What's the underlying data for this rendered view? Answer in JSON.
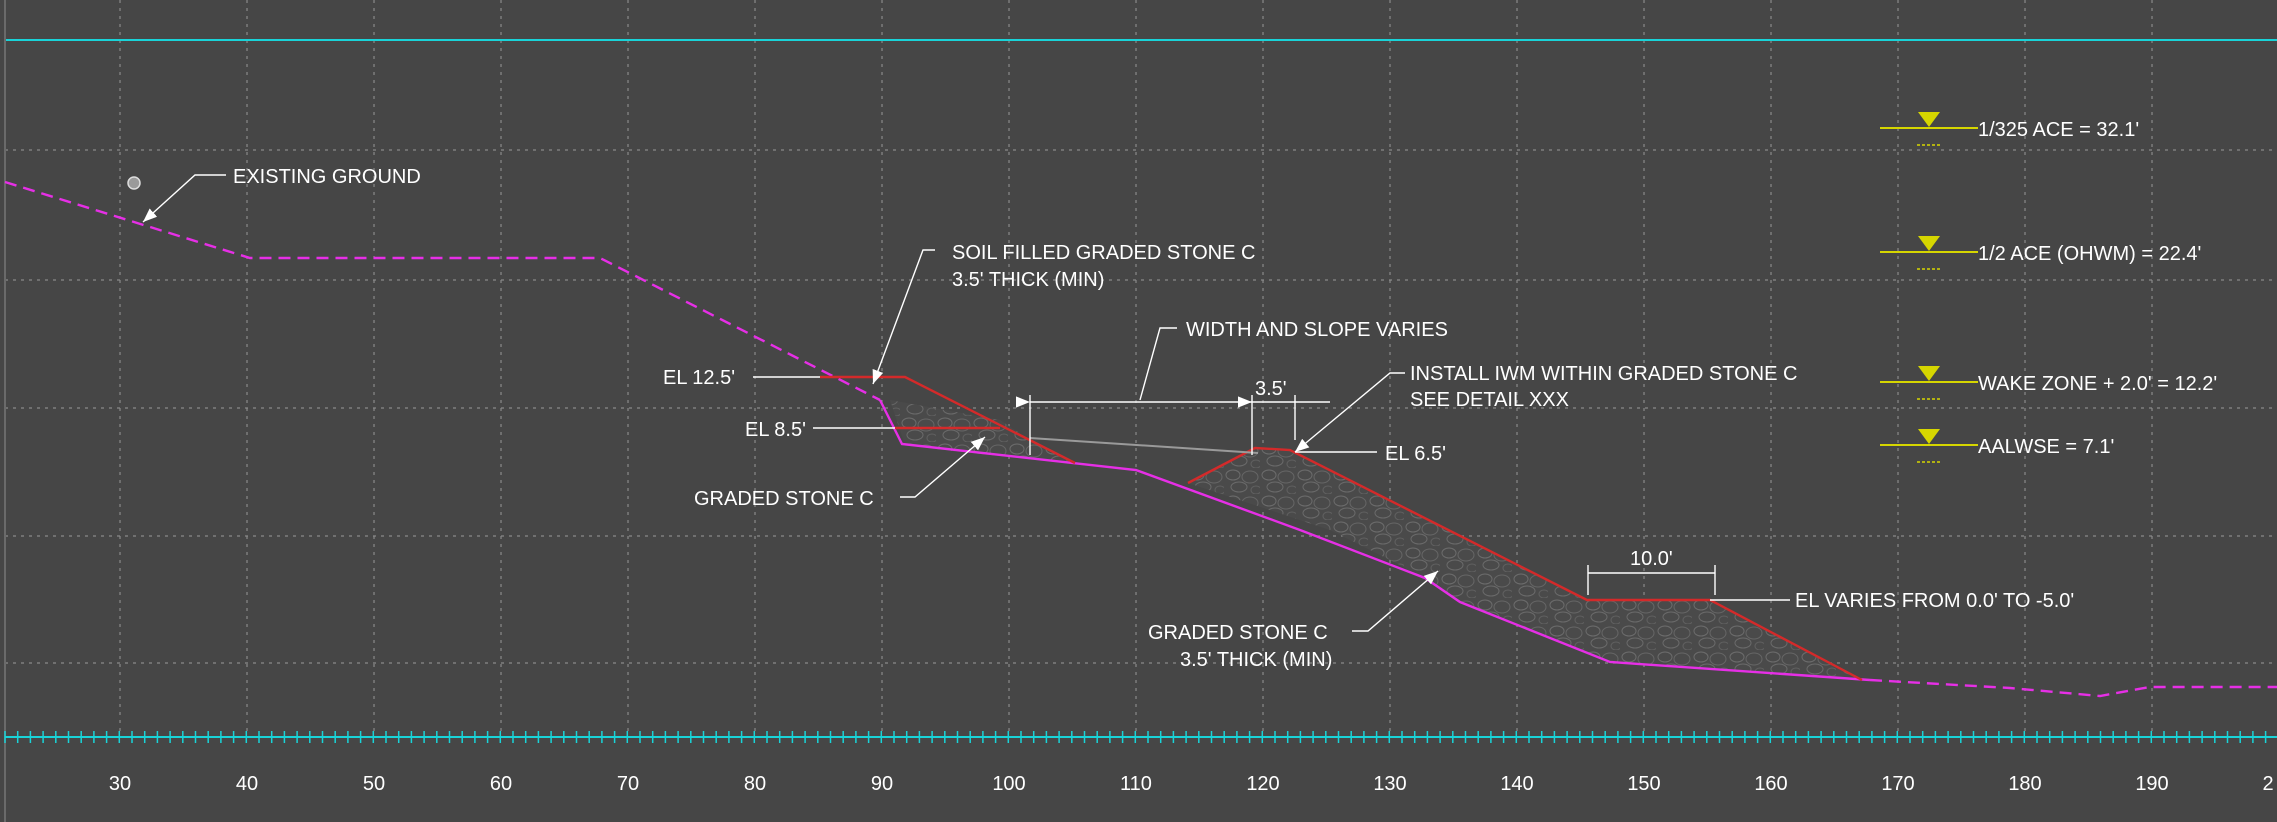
{
  "colors": {
    "background": "#464646",
    "frame": "#19d3d8",
    "existing_ground": "#e62fe6",
    "proposed": "#d42a2a",
    "water_marker": "#d6d600",
    "text": "#ffffff"
  },
  "x_axis": {
    "ticks": [
      "30",
      "40",
      "50",
      "60",
      "70",
      "80",
      "90",
      "100",
      "110",
      "120",
      "130",
      "140",
      "150",
      "160",
      "170",
      "180",
      "190",
      "2"
    ]
  },
  "labels": {
    "existing_ground": "EXISTING GROUND",
    "soil_filled_line1": "SOIL FILLED GRADED STONE C",
    "soil_filled_line2": "3.5' THICK (MIN)",
    "width_slope": "WIDTH AND SLOPE VARIES",
    "dim_3_5": "3.5'",
    "install_iwm_line1": "INSTALL IWM WITHIN GRADED STONE C",
    "install_iwm_line2": "SEE DETAIL XXX",
    "el_12_5": "EL 12.5'",
    "el_8_5": "EL 8.5'",
    "el_6_5": "EL 6.5'",
    "graded_stone_upper": "GRADED STONE C",
    "graded_stone_lower_line1": "GRADED STONE C",
    "graded_stone_lower_line2": "3.5' THICK (MIN)",
    "dim_10_0": "10.0'",
    "el_varies": "EL VARIES FROM 0.0' TO -5.0'"
  },
  "water_levels": [
    "1/325 ACE = 32.1'",
    "1/2 ACE (OHWM) = 22.4'",
    "WAKE ZONE + 2.0' = 12.2'",
    "AALWSE = 7.1'"
  ]
}
